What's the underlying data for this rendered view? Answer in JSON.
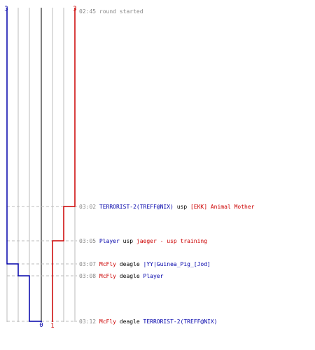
{
  "chart_data": {
    "type": "line",
    "title": "",
    "xlabel": "",
    "ylabel": "",
    "score_start": {
      "blue": "3",
      "red": "3"
    },
    "score_end": {
      "blue": "0",
      "red": "1"
    },
    "colors": {
      "blue": "#0000aa",
      "red": "#cc0000",
      "time": "#888888",
      "text": "#000000",
      "grid": "#bbbbbb",
      "grid_strong": "#555555",
      "dash": "#bbbbbb"
    },
    "events": [
      {
        "time": "02:45",
        "type": "start",
        "text": "round started"
      },
      {
        "time": "03:02",
        "type": "kill",
        "killer": "TERRORIST-2(TREFF@NIX)",
        "killer_team": "blue",
        "weapon": "usp",
        "victim": "[EKK] Animal Mother",
        "victim_team": "red"
      },
      {
        "time": "03:05",
        "type": "kill",
        "killer": "Player",
        "killer_team": "blue",
        "weapon": "usp",
        "victim": "jaeger - usp training",
        "victim_team": "red"
      },
      {
        "time": "03:07",
        "type": "kill",
        "killer": "McFly",
        "killer_team": "red",
        "weapon": "deagle",
        "victim": "|YY|Guinea_Pig_[Jod]",
        "victim_team": "blue"
      },
      {
        "time": "03:08",
        "type": "kill",
        "killer": "McFly",
        "killer_team": "red",
        "weapon": "deagle",
        "victim": "Player",
        "victim_team": "blue"
      },
      {
        "time": "03:12",
        "type": "kill",
        "killer": "McFly",
        "killer_team": "red",
        "weapon": "deagle",
        "victim": "TERRORIST-2(TREFF@NIX)",
        "victim_team": "blue"
      }
    ],
    "series": [
      {
        "name": "",
        "team": "blue",
        "values": [
          3,
          3,
          3,
          2,
          1,
          0
        ]
      },
      {
        "name": "",
        "team": "red",
        "values": [
          3,
          2,
          1,
          1,
          1,
          1
        ]
      }
    ]
  }
}
